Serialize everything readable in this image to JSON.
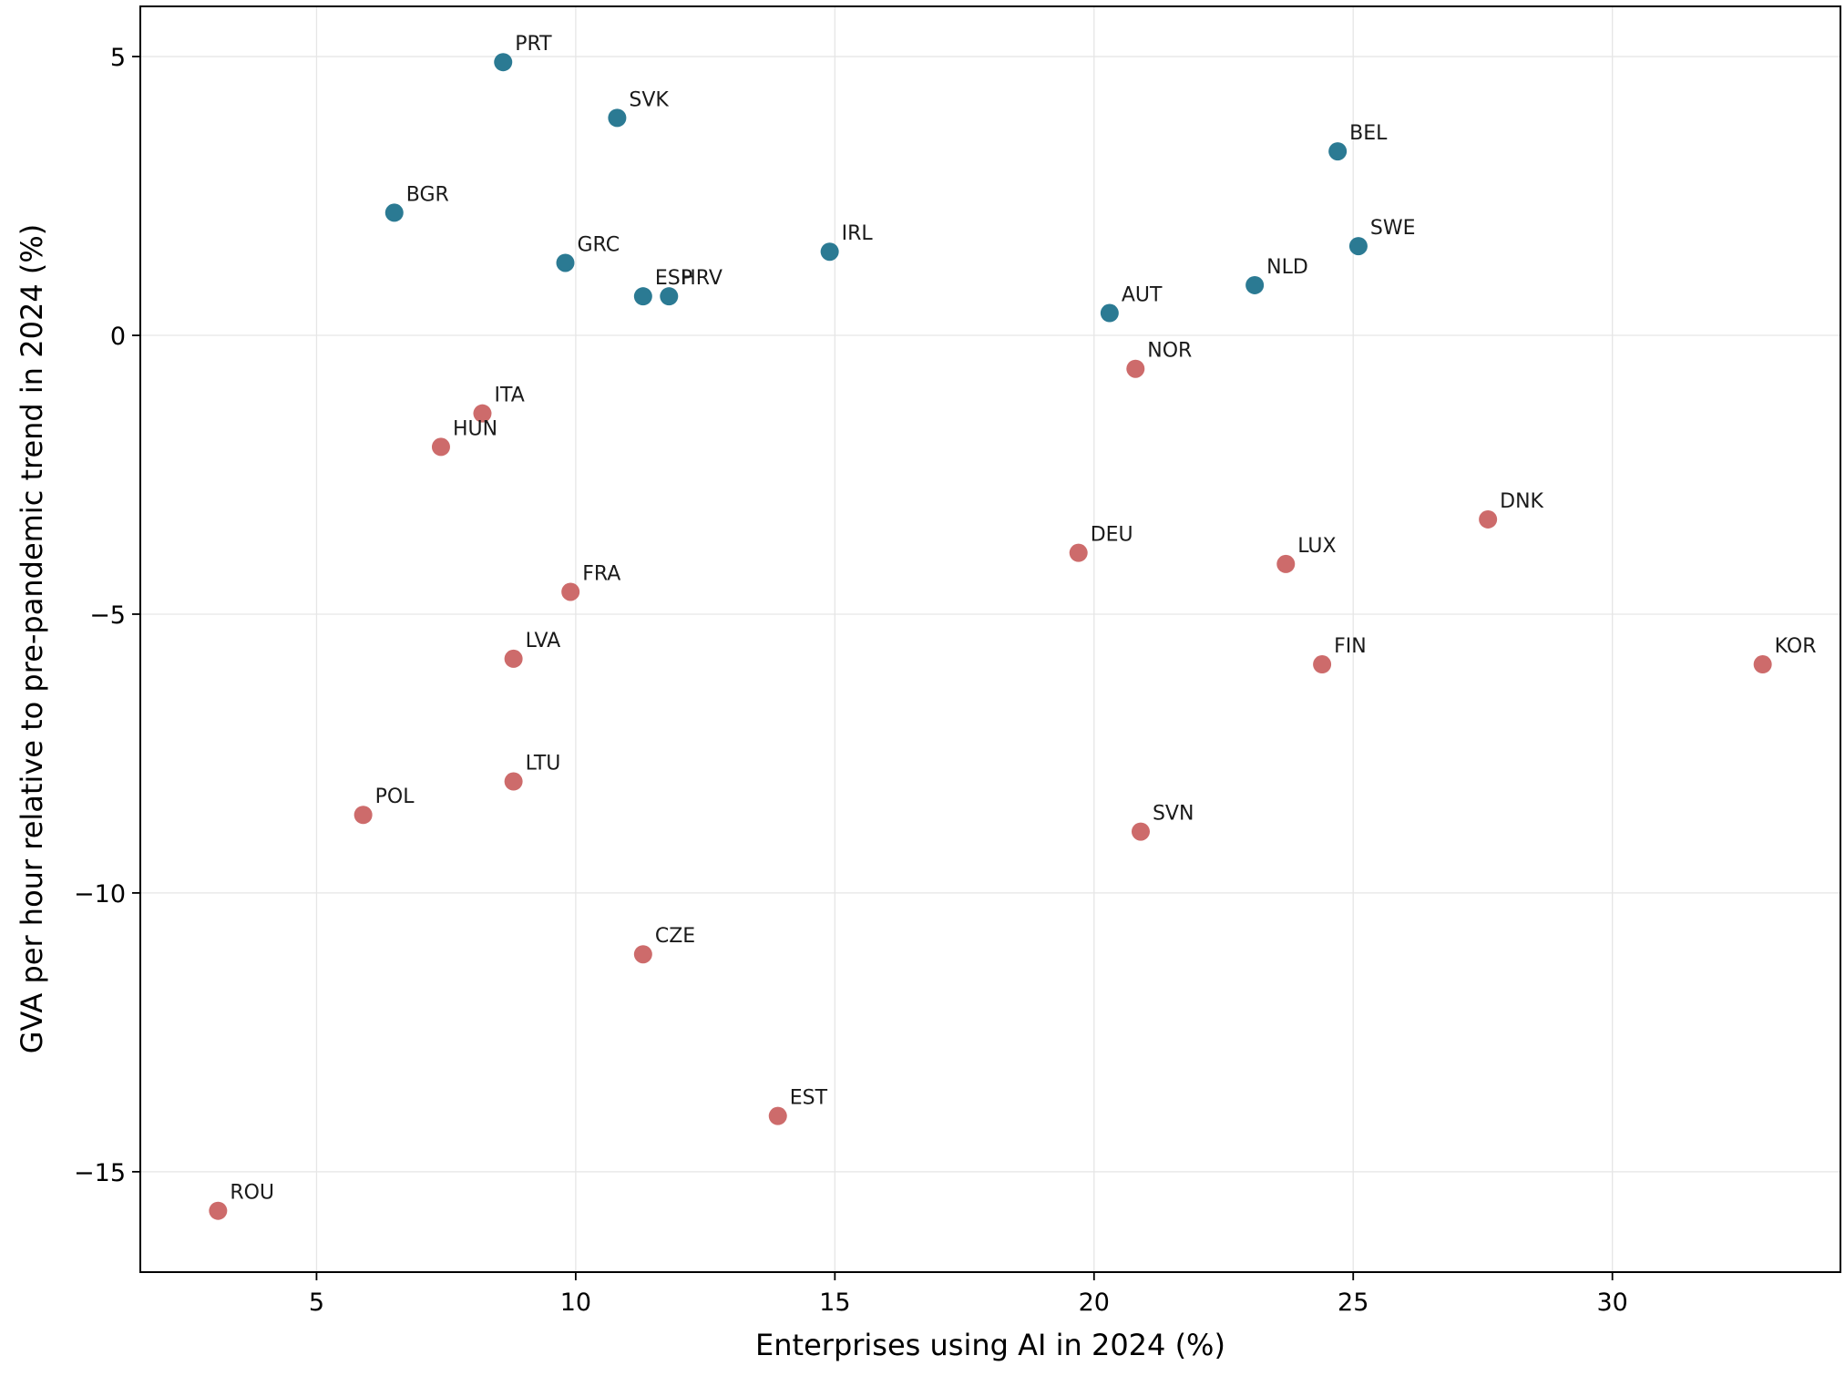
{
  "chart_data": {
    "type": "scatter",
    "title": "",
    "xlabel": "Enterprises using AI in 2024 (%)",
    "ylabel": "GVA per hour relative to pre-pandemic trend in 2024 (%)",
    "xlim": [
      1.6,
      34.4
    ],
    "ylim": [
      -16.8,
      5.9
    ],
    "xticks": [
      5,
      10,
      15,
      20,
      25,
      30
    ],
    "yticks": [
      5,
      0,
      -5,
      -10,
      -15
    ],
    "xtick_labels": [
      "5",
      "10",
      "15",
      "20",
      "25",
      "30"
    ],
    "ytick_labels": [
      "5",
      "0",
      "−5",
      "−10",
      "−15"
    ],
    "grid": true,
    "legend": "none",
    "colors": {
      "above_trend": "#2b7a93",
      "below_trend": "#cd6b6b"
    },
    "points": [
      {
        "label": "PRT",
        "x": 8.6,
        "y": 4.9,
        "group": "above_trend"
      },
      {
        "label": "SVK",
        "x": 10.8,
        "y": 3.9,
        "group": "above_trend"
      },
      {
        "label": "BEL",
        "x": 24.7,
        "y": 3.3,
        "group": "above_trend"
      },
      {
        "label": "BGR",
        "x": 6.5,
        "y": 2.2,
        "group": "above_trend"
      },
      {
        "label": "SWE",
        "x": 25.1,
        "y": 1.6,
        "group": "above_trend"
      },
      {
        "label": "IRL",
        "x": 14.9,
        "y": 1.5,
        "group": "above_trend"
      },
      {
        "label": "GRC",
        "x": 9.8,
        "y": 1.3,
        "group": "above_trend"
      },
      {
        "label": "NLD",
        "x": 23.1,
        "y": 0.9,
        "group": "above_trend"
      },
      {
        "label": "ESP",
        "x": 11.3,
        "y": 0.7,
        "group": "above_trend"
      },
      {
        "label": "HRV",
        "x": 11.8,
        "y": 0.7,
        "group": "above_trend"
      },
      {
        "label": "AUT",
        "x": 20.3,
        "y": 0.4,
        "group": "above_trend"
      },
      {
        "label": "NOR",
        "x": 20.8,
        "y": -0.6,
        "group": "below_trend"
      },
      {
        "label": "ITA",
        "x": 8.2,
        "y": -1.4,
        "group": "below_trend"
      },
      {
        "label": "HUN",
        "x": 7.4,
        "y": -2.0,
        "group": "below_trend"
      },
      {
        "label": "DNK",
        "x": 27.6,
        "y": -3.3,
        "group": "below_trend"
      },
      {
        "label": "DEU",
        "x": 19.7,
        "y": -3.9,
        "group": "below_trend"
      },
      {
        "label": "LUX",
        "x": 23.7,
        "y": -4.1,
        "group": "below_trend"
      },
      {
        "label": "FRA",
        "x": 9.9,
        "y": -4.6,
        "group": "below_trend"
      },
      {
        "label": "LVA",
        "x": 8.8,
        "y": -5.8,
        "group": "below_trend"
      },
      {
        "label": "FIN",
        "x": 24.4,
        "y": -5.9,
        "group": "below_trend"
      },
      {
        "label": "KOR",
        "x": 32.9,
        "y": -5.9,
        "group": "below_trend"
      },
      {
        "label": "LTU",
        "x": 8.8,
        "y": -8.0,
        "group": "below_trend"
      },
      {
        "label": "POL",
        "x": 5.9,
        "y": -8.6,
        "group": "below_trend"
      },
      {
        "label": "SVN",
        "x": 20.9,
        "y": -8.9,
        "group": "below_trend"
      },
      {
        "label": "CZE",
        "x": 11.3,
        "y": -11.1,
        "group": "below_trend"
      },
      {
        "label": "EST",
        "x": 13.9,
        "y": -14.0,
        "group": "below_trend"
      },
      {
        "label": "ROU",
        "x": 3.1,
        "y": -15.7,
        "group": "below_trend"
      }
    ]
  }
}
